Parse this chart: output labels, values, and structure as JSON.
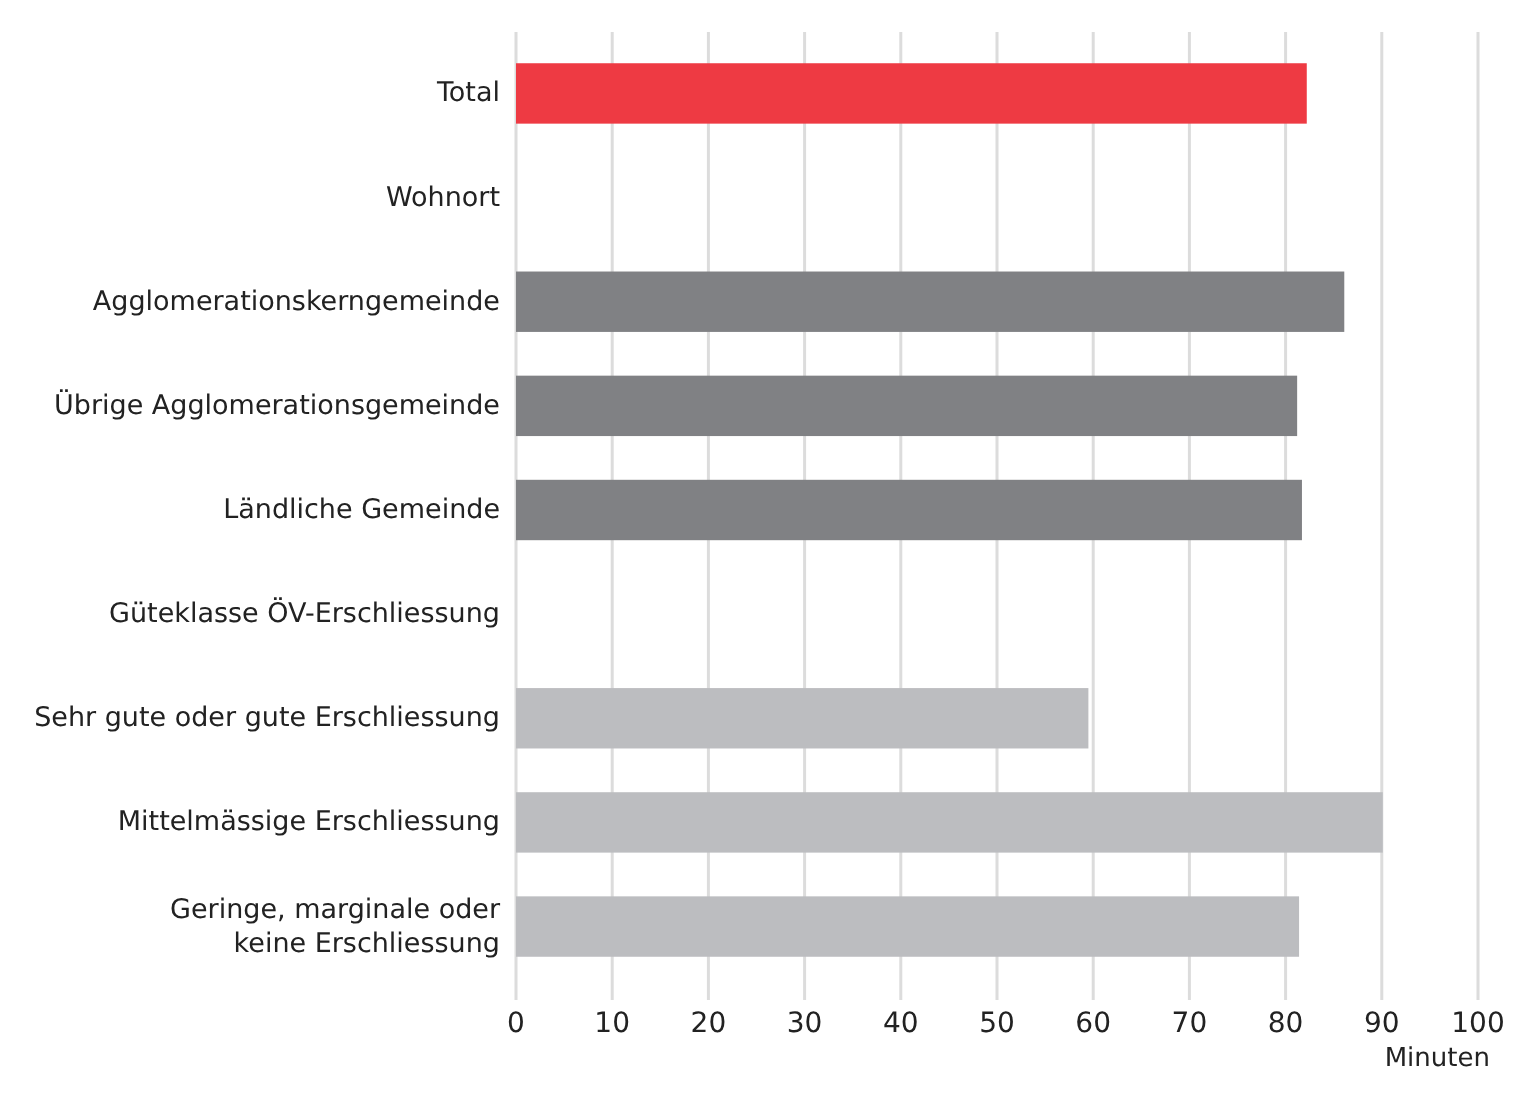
{
  "chart_data": {
    "type": "bar",
    "orientation": "horizontal",
    "xlabel": "Minuten",
    "categories": [
      "Total",
      "Wohnort",
      "Agglomerationskerngemeinde",
      "Übrige Agglomerationsgemeinde",
      "Ländliche Gemeinde",
      "Güteklasse ÖV-Erschliessung",
      "Sehr gute oder gute Erschliessung",
      "Mittelmässige Erschliessung",
      "Geringe, marginale oder\nkeine Erschliessung"
    ],
    "values": [
      82.2,
      null,
      86.1,
      81.2,
      81.7,
      null,
      59.5,
      90.1,
      81.4
    ],
    "colors": [
      "#ee3a43",
      null,
      "#808184",
      "#808184",
      "#808184",
      null,
      "#bcbdc0",
      "#bcbdc0",
      "#bcbdc0"
    ],
    "xlim": [
      0,
      100
    ],
    "xticks": [
      0,
      10,
      20,
      30,
      40,
      50,
      60,
      70,
      80,
      90,
      100
    ],
    "grid": "x"
  }
}
